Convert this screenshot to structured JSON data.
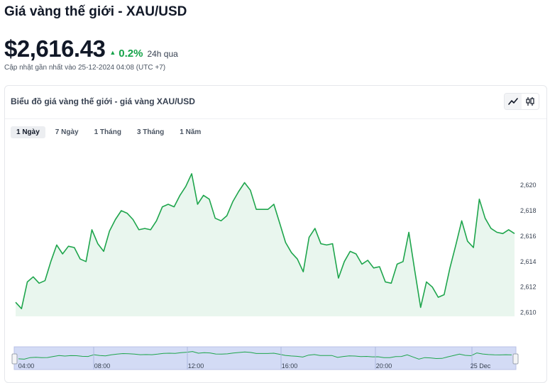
{
  "header": {
    "title": "Giá vàng thế giới - XAU/USD",
    "price": "$2,616.43",
    "change": "0.2%",
    "change_period": "24h qua",
    "updated": "Cập nhật gần nhất vào 25-12-2024 04:08 (UTC +7)"
  },
  "card": {
    "title": "Biểu đồ giá vàng thế giới - giá vàng XAU/USD",
    "range_tabs": [
      {
        "label": "1 Ngày",
        "active": true
      },
      {
        "label": "7 Ngày",
        "active": false
      },
      {
        "label": "1 Tháng",
        "active": false
      },
      {
        "label": "3 Tháng",
        "active": false
      },
      {
        "label": "1 Năm",
        "active": false
      }
    ]
  },
  "colors": {
    "line": "#1ea54c",
    "area": "#e9f6ee",
    "navigator_bg": "#d3dbf5",
    "up": "#16a34a"
  },
  "chart_data": {
    "type": "area",
    "ylim": [
      2609.7,
      2623.4
    ],
    "yticks": [
      "2,610",
      "2,612",
      "2,614",
      "2,616",
      "2,618",
      "2,620"
    ],
    "ytick_values": [
      2610,
      2612,
      2614,
      2616,
      2618,
      2620
    ],
    "navigator_labels": [
      "04:00",
      "08:00",
      "12:00",
      "16:00",
      "20:00",
      "25 Dec"
    ],
    "values": [
      2610.8,
      2610.3,
      2612.4,
      2612.8,
      2612.3,
      2612.5,
      2614.0,
      2615.3,
      2614.6,
      2615.2,
      2615.1,
      2614.2,
      2614.0,
      2616.5,
      2615.4,
      2614.8,
      2616.4,
      2617.3,
      2618.0,
      2617.8,
      2617.3,
      2616.5,
      2616.6,
      2616.5,
      2617.2,
      2618.3,
      2618.5,
      2618.3,
      2619.2,
      2619.9,
      2620.9,
      2618.5,
      2619.2,
      2618.9,
      2617.4,
      2617.2,
      2617.6,
      2618.7,
      2619.5,
      2620.2,
      2619.6,
      2618.1,
      2618.1,
      2618.1,
      2618.5,
      2617.0,
      2615.5,
      2614.7,
      2614.2,
      2613.2,
      2615.9,
      2616.6,
      2615.4,
      2615.3,
      2615.4,
      2612.7,
      2614.0,
      2614.8,
      2614.6,
      2613.8,
      2614.1,
      2613.5,
      2613.6,
      2612.4,
      2612.3,
      2613.8,
      2614.0,
      2616.3,
      2613.3,
      2610.4,
      2612.4,
      2612.0,
      2611.2,
      2611.4,
      2613.5,
      2615.3,
      2617.2,
      2615.6,
      2615.1,
      2618.9,
      2617.4,
      2616.6,
      2616.3,
      2616.2,
      2616.5,
      2616.2
    ]
  }
}
